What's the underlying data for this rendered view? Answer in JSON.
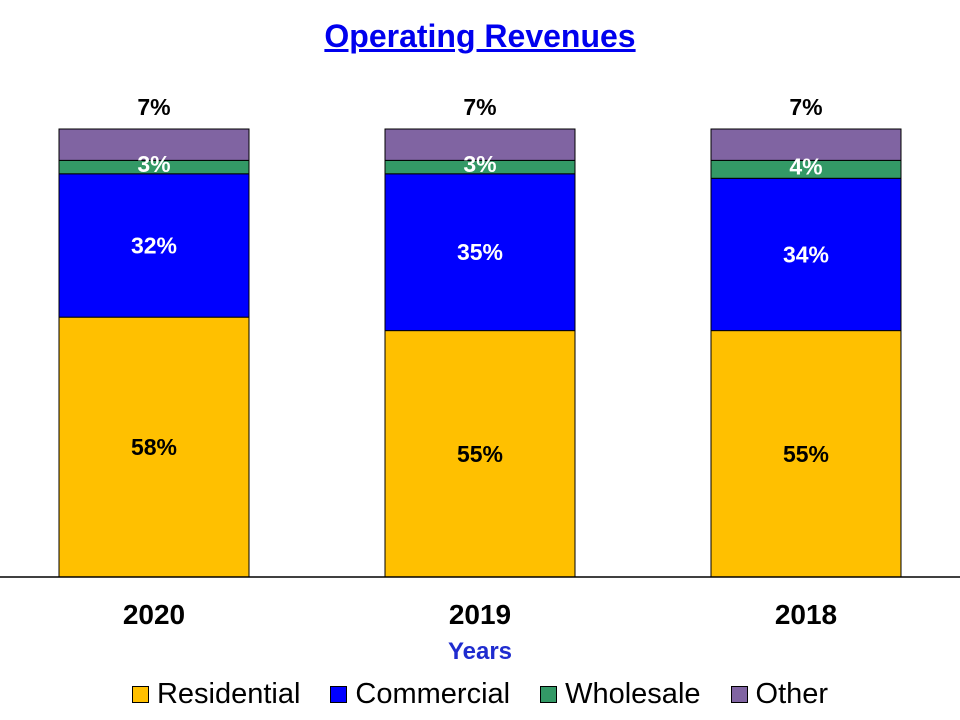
{
  "chart_data": {
    "type": "bar",
    "stacked": true,
    "title": "Operating Revenues",
    "xlabel": "Years",
    "ylabel": "",
    "ylim": [
      0,
      100
    ],
    "categories": [
      "2020",
      "2019",
      "2018"
    ],
    "series": [
      {
        "name": "Residential",
        "color": "#ffc000",
        "labelColor": "#000000",
        "values": [
          58,
          55,
          55
        ]
      },
      {
        "name": "Commercial",
        "color": "#0000ff",
        "labelColor": "#ffffff",
        "values": [
          32,
          35,
          34
        ]
      },
      {
        "name": "Wholesale",
        "color": "#339966",
        "labelColor": "#ffffff",
        "values": [
          3,
          3,
          4
        ]
      },
      {
        "name": "Other",
        "color": "#8064a2",
        "labelColor": "#000000",
        "values": [
          7,
          7,
          7
        ]
      }
    ],
    "data_labels": [
      [
        "58%",
        "55%",
        "55%"
      ],
      [
        "32%",
        "35%",
        "34%"
      ],
      [
        "3%",
        "3%",
        "4%"
      ],
      [
        "7%",
        "7%",
        "7%"
      ]
    ],
    "legend_position": "bottom",
    "grid": false
  }
}
